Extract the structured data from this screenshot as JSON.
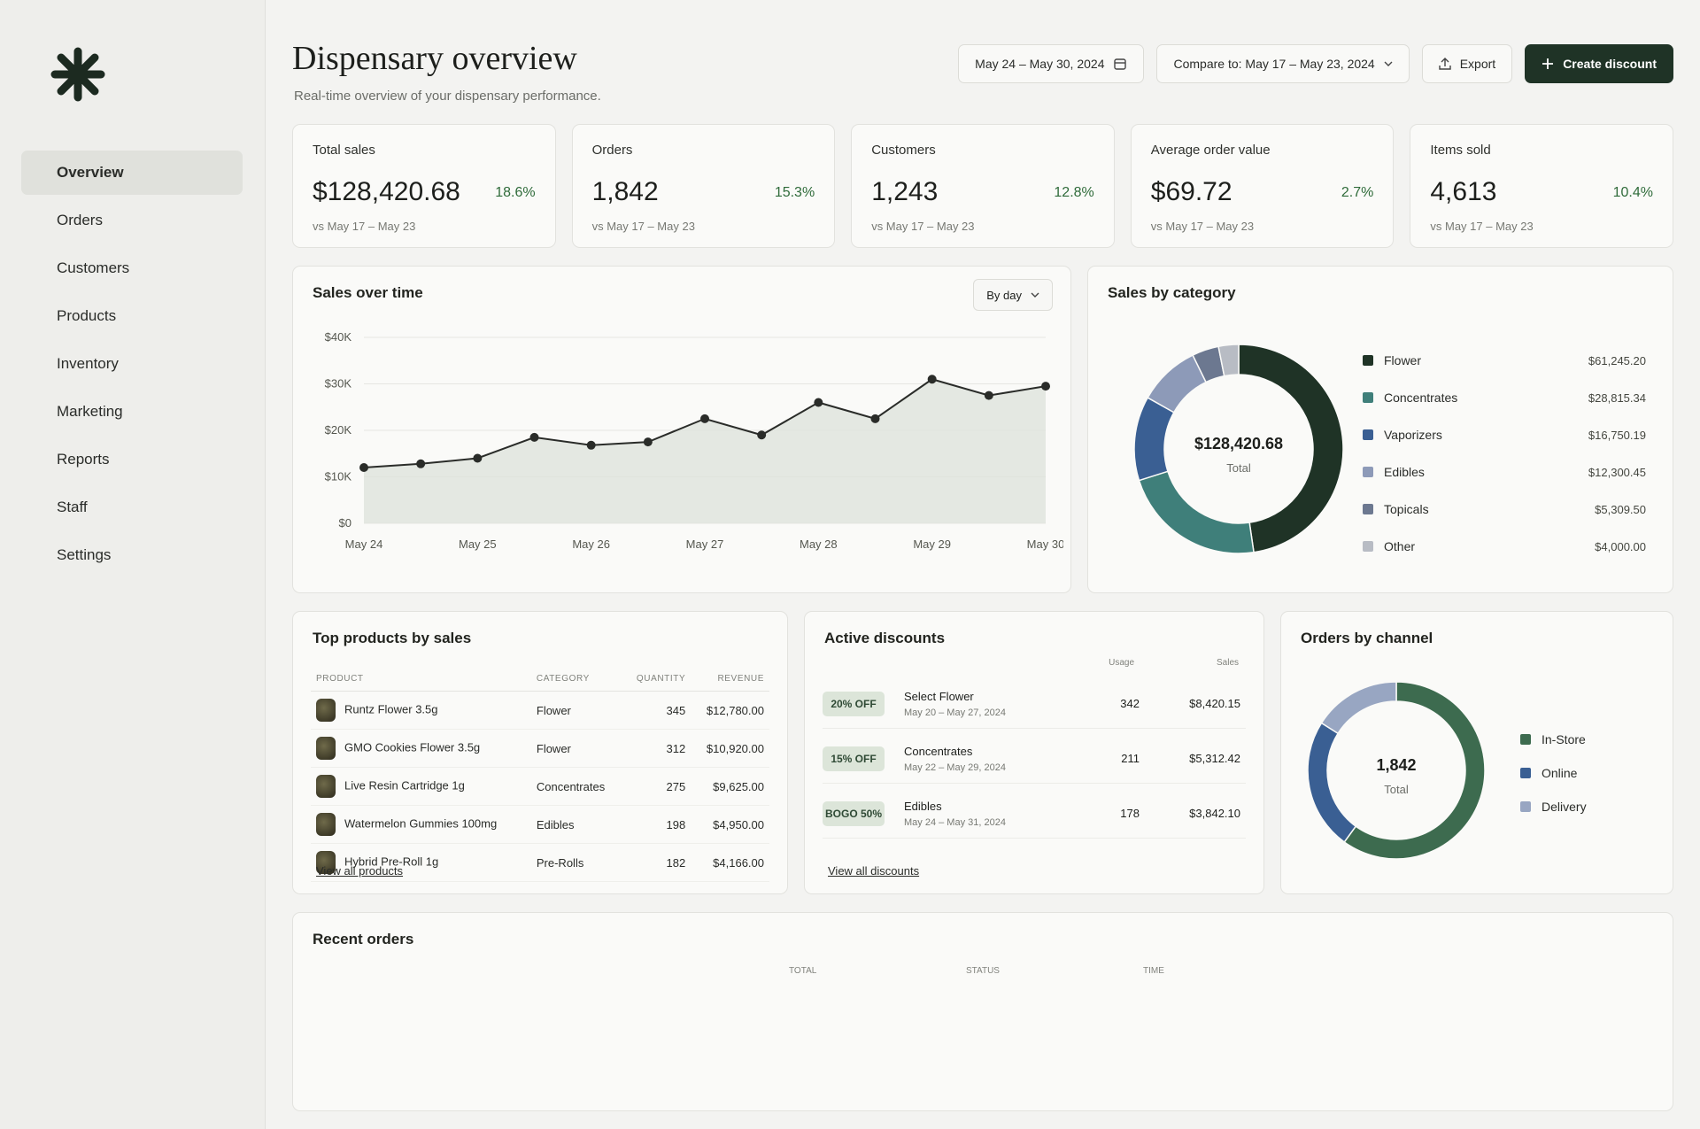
{
  "sidebar": {
    "nav": [
      "Overview",
      "Orders",
      "Customers",
      "Products",
      "Inventory",
      "Marketing",
      "Reports",
      "Staff",
      "Settings"
    ]
  },
  "header": {
    "title": "Dispensary overview",
    "subtitle": "Real-time overview of your dispensary performance.",
    "date_range": "May 24 – May 30, 2024",
    "compare": "Compare to: May 17 – May 23, 2024",
    "export": "Export",
    "create": "Create discount"
  },
  "kpis": [
    {
      "label": "Total sales",
      "value": "$128,420.68",
      "change": "18.6%",
      "compare": "vs May 17 – May 23"
    },
    {
      "label": "Orders",
      "value": "1,842",
      "change": "15.3%",
      "compare": "vs May 17 – May 23"
    },
    {
      "label": "Customers",
      "value": "1,243",
      "change": "12.8%",
      "compare": "vs May 17 – May 23"
    },
    {
      "label": "Average order value",
      "value": "$69.72",
      "change": "2.7%",
      "compare": "vs May 17 – May 23"
    },
    {
      "label": "Items sold",
      "value": "4,613",
      "change": "10.4%",
      "compare": "vs May 17 – May 23"
    }
  ],
  "chart_data": [
    {
      "type": "line",
      "title": "Sales over time",
      "control": "By day",
      "categories": [
        "May 24",
        null,
        "May 25",
        null,
        "May 26",
        null,
        "May 27",
        null,
        "May 28",
        null,
        "May 29",
        null,
        "May 30"
      ],
      "values": [
        12000,
        12800,
        14000,
        18500,
        16800,
        17500,
        22500,
        19000,
        26000,
        22500,
        31000,
        27500,
        29500
      ],
      "color": "#2a2c29",
      "area_color": "#dfe3dc",
      "ylim": [
        0,
        40000
      ],
      "yticks": [
        {
          "value": 0,
          "label": "$0"
        },
        {
          "value": 10000,
          "label": "$10K"
        },
        {
          "value": 20000,
          "label": "$20K"
        },
        {
          "value": 30000,
          "label": "$30K"
        },
        {
          "value": 40000,
          "label": "$40K"
        }
      ],
      "grid": true
    },
    {
      "type": "donut",
      "title": "Sales by category",
      "center_label": "$128,420.68",
      "center_sublabel": "Total",
      "categories": [
        "Flower",
        "Concentrates",
        "Vaporizers",
        "Edibles",
        "Topicals",
        "Other"
      ],
      "values": [
        61245.2,
        28815.34,
        16750.19,
        12300.45,
        5309.5,
        4000.0
      ],
      "value_labels": [
        "$61,245.20",
        "$28,815.34",
        "$16,750.19",
        "$12,300.45",
        "$5,309.50",
        "$4,000.00"
      ],
      "colors": [
        "#1f3326",
        "#3f7f7a",
        "#3a5f93",
        "#8d9ab8",
        "#6c7890",
        "#b8bcc4"
      ]
    },
    {
      "type": "donut",
      "title": "Orders by channel",
      "center_label": "1,842",
      "center_sublabel": "Total",
      "categories": [
        "In-Store",
        "Online",
        "Delivery"
      ],
      "values": [
        1105,
        442,
        295
      ],
      "colors": [
        "#3d6b4f",
        "#3a5f93",
        "#98a6c2"
      ]
    }
  ],
  "top_products": {
    "title": "Top products by sales",
    "columns": [
      "PRODUCT",
      "CATEGORY",
      "QUANTITY",
      "REVENUE"
    ],
    "rows": [
      [
        "Runtz Flower 3.5g",
        "Flower",
        345,
        "$12,780.00"
      ],
      [
        "GMO Cookies Flower 3.5g",
        "Flower",
        312,
        "$10,920.00"
      ],
      [
        "Live Resin Cartridge 1g",
        "Concentrates",
        275,
        "$9,625.00"
      ],
      [
        "Watermelon Gummies 100mg",
        "Edibles",
        198,
        "$4,950.00"
      ],
      [
        "Hybrid Pre-Roll 1g",
        "Pre-Rolls",
        182,
        "$4,166.00"
      ]
    ],
    "link": "View all products"
  },
  "discounts": {
    "title": "Active discounts",
    "columns": [
      "Usage",
      "Sales"
    ],
    "rows": [
      {
        "badge": "20% OFF",
        "name": "Select Flower",
        "dates": "May 20 – May 27, 2024",
        "usage": 342,
        "sales": "$8,420.15"
      },
      {
        "badge": "15% OFF",
        "name": "Concentrates",
        "dates": "May 22 – May 29, 2024",
        "usage": 211,
        "sales": "$5,312.42"
      },
      {
        "badge": "BOGO 50%",
        "name": "Edibles",
        "dates": "May 24 – May 31, 2024",
        "usage": 178,
        "sales": "$3,842.10"
      }
    ],
    "link": "View all discounts"
  },
  "recent_orders": {
    "title": "Recent orders",
    "columns": [
      "TOTAL",
      "STATUS",
      "TIME"
    ]
  }
}
